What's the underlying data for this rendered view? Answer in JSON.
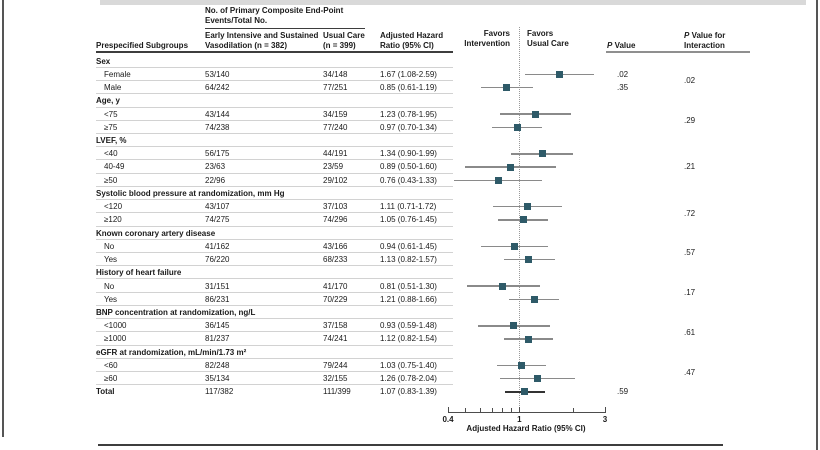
{
  "figure": {
    "table": {
      "col_subgroups": "Prespecified Subgroups",
      "events_header": [
        "No. of Primary Composite End-Point",
        "Events/Total No."
      ],
      "col_intervention": [
        "Early Intensive and Sustained",
        "Vasodilation (n = 382)"
      ],
      "col_usual": [
        "Usual Care",
        "(n = 399)"
      ],
      "col_hr": [
        "Adjusted Hazard",
        "Ratio (95% CI)"
      ],
      "col_p": "P Value",
      "col_p_interaction": [
        "P Value for",
        "Interaction"
      ]
    },
    "plot_labels": {
      "favors_intervention": [
        "Favors",
        "Intervention"
      ],
      "favors_usual": [
        "Favors",
        "Usual Care"
      ]
    }
  },
  "chart_data": {
    "type": "forest",
    "x_axis": {
      "label": "Adjusted Hazard Ratio (95% CI)",
      "scale": "log",
      "min": 0.4,
      "max": 3,
      "major_ticks": [
        "0.4",
        "1",
        "3"
      ],
      "major_tick_values": [
        0.4,
        1,
        3
      ],
      "minor_tick_values": [
        0.5,
        0.6,
        0.7,
        0.8,
        0.9,
        2
      ],
      "reference_value": 1
    },
    "style": {
      "marker_color": "#2e5a68",
      "ci_color": "#8a8a8a",
      "total_ci_color": "#333333",
      "reference_line_color": "#999999"
    },
    "groups": [
      {
        "label": "Sex",
        "interaction_p": ".02",
        "items": [
          {
            "label": "Female",
            "intervention": "53/140",
            "usual": "34/148",
            "hr_text": "1.67 (1.08-2.59)",
            "hr": 1.67,
            "ci_low": 1.08,
            "ci_high": 2.59,
            "p": ".02"
          },
          {
            "label": "Male",
            "intervention": "64/242",
            "usual": "77/251",
            "hr_text": "0.85 (0.61-1.19)",
            "hr": 0.85,
            "ci_low": 0.61,
            "ci_high": 1.19,
            "p": ".35"
          }
        ]
      },
      {
        "label": "Age, y",
        "interaction_p": ".29",
        "items": [
          {
            "label": "<75",
            "intervention": "43/144",
            "usual": "34/159",
            "hr_text": "1.23 (0.78-1.95)",
            "hr": 1.23,
            "ci_low": 0.78,
            "ci_high": 1.95
          },
          {
            "label": "≥75",
            "intervention": "74/238",
            "usual": "77/240",
            "hr_text": "0.97 (0.70-1.34)",
            "hr": 0.97,
            "ci_low": 0.7,
            "ci_high": 1.34
          }
        ]
      },
      {
        "label": "LVEF, %",
        "interaction_p": ".21",
        "items": [
          {
            "label": "<40",
            "intervention": "56/175",
            "usual": "44/191",
            "hr_text": "1.34 (0.90-1.99)",
            "hr": 1.34,
            "ci_low": 0.9,
            "ci_high": 1.99
          },
          {
            "label": "40-49",
            "intervention": "23/63",
            "usual": "23/59",
            "hr_text": "0.89 (0.50-1.60)",
            "hr": 0.89,
            "ci_low": 0.5,
            "ci_high": 1.6
          },
          {
            "label": "≥50",
            "intervention": "22/96",
            "usual": "29/102",
            "hr_text": "0.76 (0.43-1.33)",
            "hr": 0.76,
            "ci_low": 0.43,
            "ci_high": 1.33
          }
        ]
      },
      {
        "label": "Systolic blood pressure at randomization, mm Hg",
        "interaction_p": ".72",
        "items": [
          {
            "label": "<120",
            "intervention": "43/107",
            "usual": "37/103",
            "hr_text": "1.11 (0.71-1.72)",
            "hr": 1.11,
            "ci_low": 0.71,
            "ci_high": 1.72
          },
          {
            "label": "≥120",
            "intervention": "74/275",
            "usual": "74/296",
            "hr_text": "1.05 (0.76-1.45)",
            "hr": 1.05,
            "ci_low": 0.76,
            "ci_high": 1.45
          }
        ]
      },
      {
        "label": "Known coronary artery disease",
        "interaction_p": ".57",
        "items": [
          {
            "label": "No",
            "intervention": "41/162",
            "usual": "43/166",
            "hr_text": "0.94 (0.61-1.45)",
            "hr": 0.94,
            "ci_low": 0.61,
            "ci_high": 1.45
          },
          {
            "label": "Yes",
            "intervention": "76/220",
            "usual": "68/233",
            "hr_text": "1.13 (0.82-1.57)",
            "hr": 1.13,
            "ci_low": 0.82,
            "ci_high": 1.57
          }
        ]
      },
      {
        "label": "History of heart failure",
        "interaction_p": ".17",
        "items": [
          {
            "label": "No",
            "intervention": "31/151",
            "usual": "41/170",
            "hr_text": "0.81 (0.51-1.30)",
            "hr": 0.81,
            "ci_low": 0.51,
            "ci_high": 1.3
          },
          {
            "label": "Yes",
            "intervention": "86/231",
            "usual": "70/229",
            "hr_text": "1.21 (0.88-1.66)",
            "hr": 1.21,
            "ci_low": 0.88,
            "ci_high": 1.66
          }
        ]
      },
      {
        "label": "BNP concentration at randomization, ng/L",
        "interaction_p": ".61",
        "items": [
          {
            "label": "<1000",
            "intervention": "36/145",
            "usual": "37/158",
            "hr_text": "0.93 (0.59-1.48)",
            "hr": 0.93,
            "ci_low": 0.59,
            "ci_high": 1.48
          },
          {
            "label": "≥1000",
            "intervention": "81/237",
            "usual": "74/241",
            "hr_text": "1.12 (0.82-1.54)",
            "hr": 1.12,
            "ci_low": 0.82,
            "ci_high": 1.54
          }
        ]
      },
      {
        "label": "eGFR at randomization, mL/min/1.73 m²",
        "interaction_p": ".47",
        "items": [
          {
            "label": "<60",
            "intervention": "82/248",
            "usual": "79/244",
            "hr_text": "1.03 (0.75-1.40)",
            "hr": 1.03,
            "ci_low": 0.75,
            "ci_high": 1.4
          },
          {
            "label": "≥60",
            "intervention": "35/134",
            "usual": "32/155",
            "hr_text": "1.26 (0.78-2.04)",
            "hr": 1.26,
            "ci_low": 0.78,
            "ci_high": 2.04
          }
        ]
      }
    ],
    "total": {
      "label": "Total",
      "intervention": "117/382",
      "usual": "111/399",
      "hr_text": "1.07 (0.83-1.39)",
      "hr": 1.07,
      "ci_low": 0.83,
      "ci_high": 1.39,
      "p": ".59"
    }
  }
}
